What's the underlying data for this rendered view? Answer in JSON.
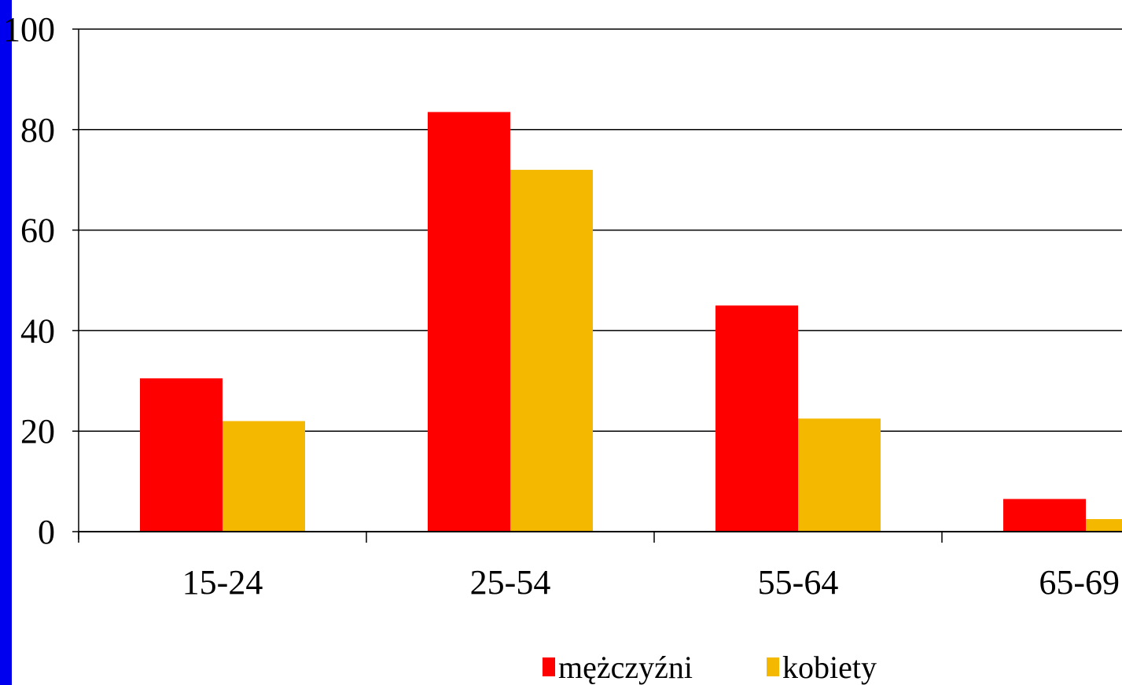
{
  "colors": {
    "frame_strip": "#0000ee",
    "series_men": "#ff0000",
    "series_women": "#f5b800",
    "gridline": "#000000"
  },
  "chart_data": {
    "type": "bar",
    "title": "",
    "xlabel": "",
    "ylabel": "",
    "ylim": [
      0,
      100
    ],
    "yticks": [
      "0",
      "20",
      "40",
      "60",
      "80",
      "100"
    ],
    "categories": [
      "15-24",
      "25-54",
      "55-64",
      "65-69"
    ],
    "series": [
      {
        "name": "mężczyźni",
        "values": [
          30.5,
          83.5,
          45,
          6.5
        ]
      },
      {
        "name": "kobiety",
        "values": [
          22,
          72,
          22.5,
          2.5
        ]
      }
    ],
    "grid": true,
    "legend_position": "bottom"
  }
}
